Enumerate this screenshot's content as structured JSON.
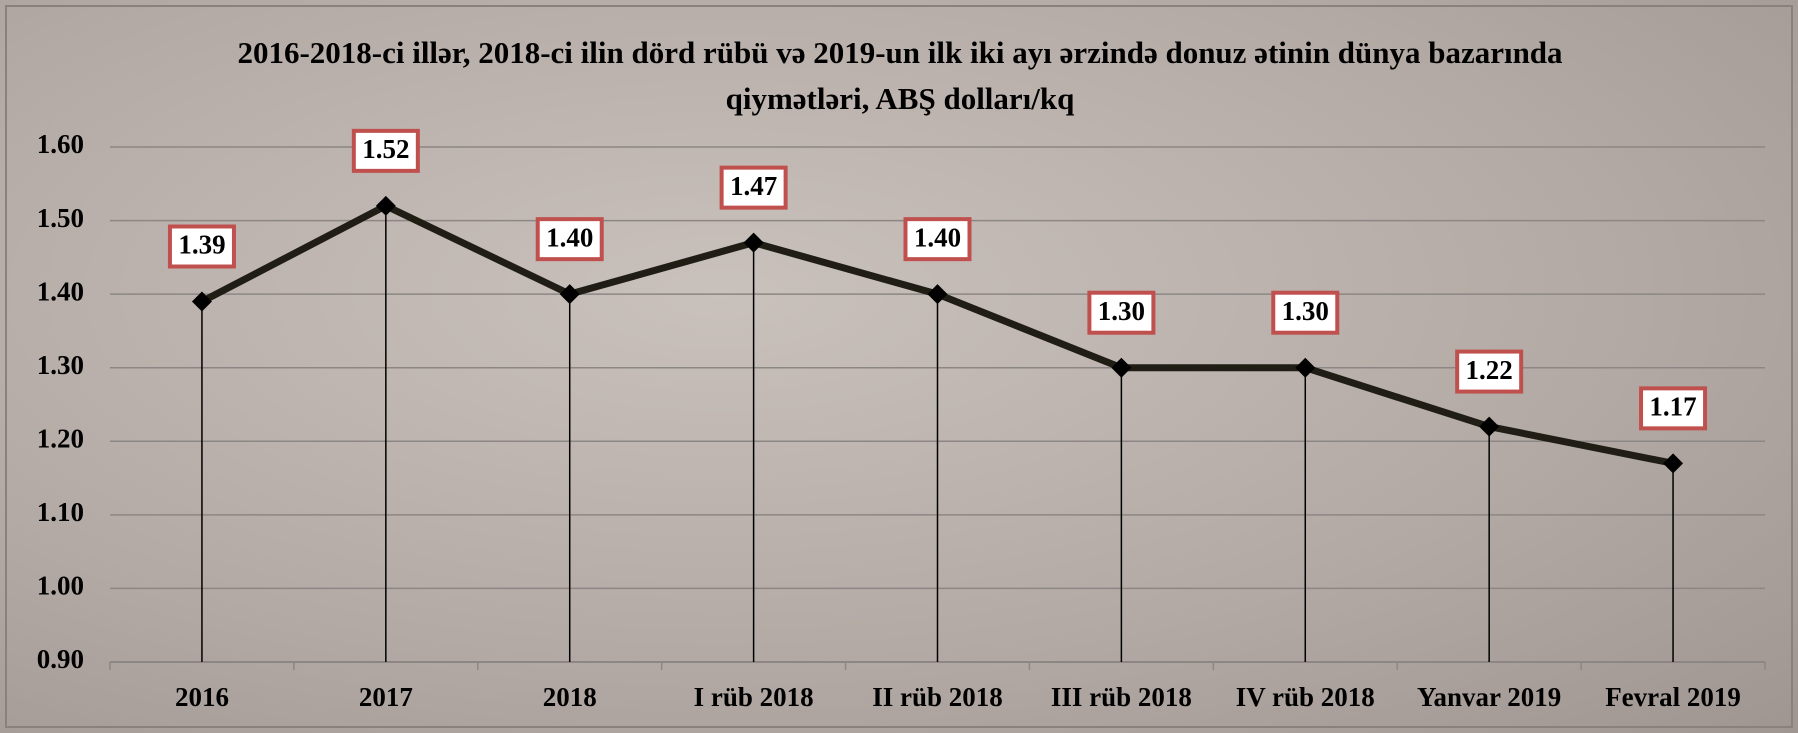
{
  "chart_data": {
    "type": "line",
    "title": "2016-2018-ci illər, 2018-ci ilin dörd rübü və 2019-un ilk iki ayı ərzində donuz ətinin dünya bazarında qiymətləri, ABŞ dolları/kq",
    "categories": [
      "2016",
      "2017",
      "2018",
      "I rüb 2018",
      "II rüb 2018",
      "III rüb 2018",
      "IV rüb 2018",
      "Yanvar 2019",
      "Fevral 2019"
    ],
    "values": [
      1.39,
      1.52,
      1.4,
      1.47,
      1.4,
      1.3,
      1.3,
      1.22,
      1.17
    ],
    "value_labels": [
      "1.39",
      "1.52",
      "1.40",
      "1.47",
      "1.40",
      "1.30",
      "1.30",
      "1.22",
      "1.17"
    ],
    "color": "#1f1d14",
    "ylim": [
      0.9,
      1.6
    ],
    "yticks": [
      {
        "value": 0.9,
        "label": "0.90"
      },
      {
        "value": 1.0,
        "label": "1.00"
      },
      {
        "value": 1.1,
        "label": "1.10"
      },
      {
        "value": 1.2,
        "label": "1.20"
      },
      {
        "value": 1.3,
        "label": "1.30"
      },
      {
        "value": 1.4,
        "label": "1.40"
      },
      {
        "value": 1.5,
        "label": "1.50"
      },
      {
        "value": 1.6,
        "label": "1.60"
      }
    ],
    "grid": true
  }
}
